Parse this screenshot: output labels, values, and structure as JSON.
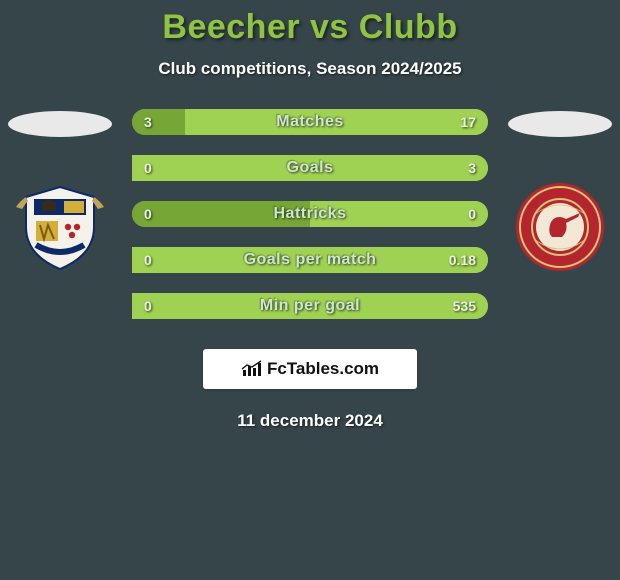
{
  "background_color": "#36454a",
  "title": {
    "text": "Beecher vs Clubb",
    "color": "#8fc442"
  },
  "subtitle": "Club competitions, Season 2024/2025",
  "silhouette_color": "#e9e9e9",
  "bar_track_color": "#8fc442",
  "bar_text_color": "#cfe6cf",
  "bar_val_color": "#e8f3e2",
  "left_fill_color": "#76a636",
  "right_fill_color": "#9fd152",
  "bars": [
    {
      "label": "Matches",
      "left": "3",
      "right": "17",
      "left_pct": 15,
      "right_pct": 85
    },
    {
      "label": "Goals",
      "left": "0",
      "right": "3",
      "left_pct": 0,
      "right_pct": 100
    },
    {
      "label": "Hattricks",
      "left": "0",
      "right": "0",
      "left_pct": 50,
      "right_pct": 50
    },
    {
      "label": "Goals per match",
      "left": "0",
      "right": "0.18",
      "left_pct": 0,
      "right_pct": 100
    },
    {
      "label": "Min per goal",
      "left": "0",
      "right": "535",
      "left_pct": 0,
      "right_pct": 100
    }
  ],
  "left_crest": {
    "bg": "#f2f2f2",
    "accent1": "#0b2a66",
    "accent2": "#d4af37",
    "accent3": "#b5252d"
  },
  "right_crest": {
    "bg": "#b5252d",
    "ring": "#d9c27a",
    "inner": "#f2e8d5",
    "figure": "#b5252d"
  },
  "brand": {
    "icon_label": "chart-icon",
    "text": "FcTables.com",
    "icon_color": "#111"
  },
  "date": "11 december 2024"
}
